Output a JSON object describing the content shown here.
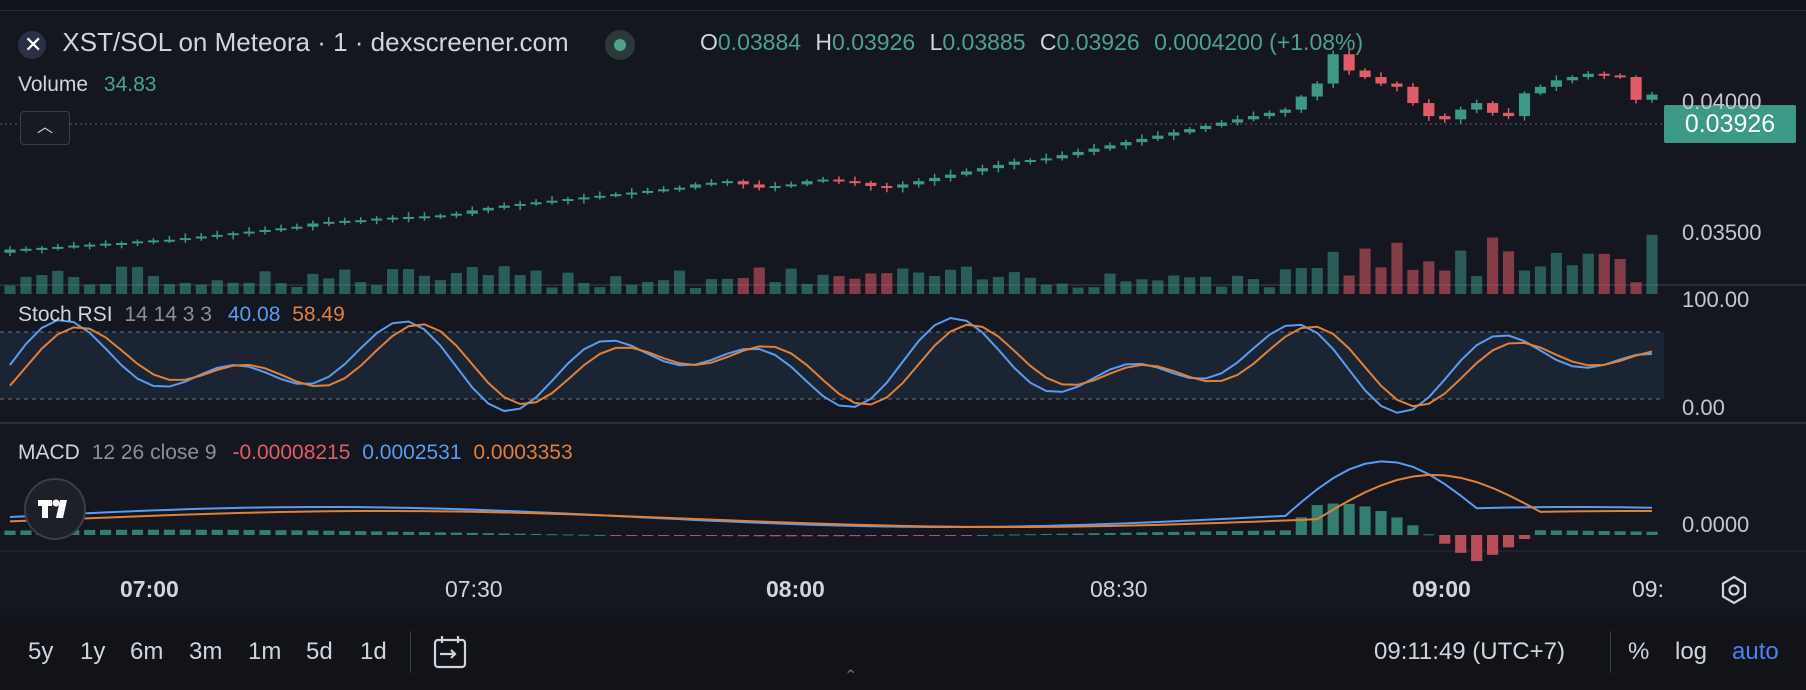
{
  "header": {
    "title": "XST/SOL on Meteora · 1 · dexscreener.com",
    "ohlc": {
      "o_label": "O",
      "o": "0.03884",
      "h_label": "H",
      "h": "0.03926",
      "l_label": "L",
      "l": "0.03885",
      "c_label": "C",
      "c": "0.03926",
      "change": "0.0004200 (+1.08%)"
    },
    "volume_label": "Volume",
    "volume_value": "34.83"
  },
  "price_axis": {
    "labels": [
      "0.04000",
      "0.03500"
    ],
    "current_price": "0.03926"
  },
  "stoch_rsi": {
    "label": "Stoch RSI",
    "params": "14 14 3 3",
    "k": "40.08",
    "d": "58.49",
    "axis": [
      "100.00",
      "0.00"
    ]
  },
  "macd": {
    "label": "MACD",
    "params": "12 26 close 9",
    "hist": "-0.00008215",
    "macd": "0.0002531",
    "signal": "0.0003353",
    "axis": [
      "0.0000"
    ]
  },
  "time_axis": {
    "labels": [
      "07:00",
      "07:30",
      "08:00",
      "08:30",
      "09:00",
      "09:"
    ]
  },
  "bottom_bar": {
    "timeframes": [
      "5y",
      "1y",
      "6m",
      "3m",
      "1m",
      "5d",
      "1d"
    ],
    "clock": "09:11:49 (UTC+7)",
    "percent": "%",
    "log": "log",
    "auto": "auto"
  },
  "colors": {
    "up": "#3c9986",
    "down": "#e05c67",
    "k_line": "#5b9bf0",
    "d_line": "#e0813a",
    "background": "#141620"
  },
  "chart_data": {
    "type": "candlestick",
    "title": "XST/SOL on Meteora · 1 · dexscreener.com",
    "interval": "1m",
    "x_range": [
      "06:53",
      "09:12"
    ],
    "y_range": [
      0.0343,
      0.0406
    ],
    "price_series_close": [
      0.0345,
      0.03452,
      0.03455,
      0.03458,
      0.03462,
      0.03465,
      0.03468,
      0.0347,
      0.03475,
      0.03478,
      0.0348,
      0.03485,
      0.0349,
      0.03495,
      0.035,
      0.03505,
      0.0351,
      0.03515,
      0.0352,
      0.0353,
      0.03535,
      0.03538,
      0.0354,
      0.03545,
      0.03548,
      0.0355,
      0.03552,
      0.03555,
      0.0356,
      0.0357,
      0.03578,
      0.03585,
      0.0359,
      0.03595,
      0.036,
      0.03605,
      0.0361,
      0.03615,
      0.0362,
      0.03625,
      0.0363,
      0.03635,
      0.0364,
      0.0365,
      0.03655,
      0.0366,
      0.0365,
      0.0364,
      0.03645,
      0.0365,
      0.0366,
      0.03665,
      0.0366,
      0.03655,
      0.03645,
      0.0364,
      0.0365,
      0.0366,
      0.0367,
      0.0368,
      0.0369,
      0.037,
      0.0371,
      0.0372,
      0.03725,
      0.0373,
      0.0374,
      0.0375,
      0.0376,
      0.0377,
      0.0378,
      0.0379,
      0.038,
      0.0381,
      0.0382,
      0.0383,
      0.0384,
      0.0385,
      0.0386,
      0.0387,
      0.0388,
      0.0392,
      0.0396,
      0.0405,
      0.04,
      0.0398,
      0.0396,
      0.0395,
      0.039,
      0.0386,
      0.0385,
      0.0388,
      0.039,
      0.0387,
      0.0386,
      0.0393,
      0.0395,
      0.0397,
      0.0398,
      0.0399,
      0.03985,
      0.0398,
      0.0391,
      0.03926
    ]
  }
}
